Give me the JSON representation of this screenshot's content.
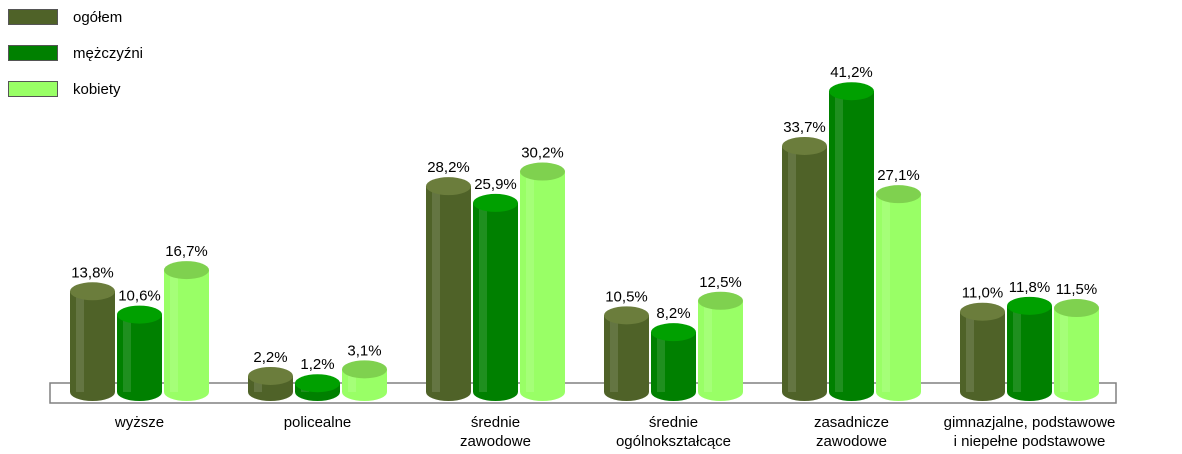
{
  "chart_data": {
    "type": "bar",
    "categories": [
      [
        "wyższe"
      ],
      [
        "policealne"
      ],
      [
        "średnie",
        "zawodowe"
      ],
      [
        "średnie",
        "ogólnokształcące"
      ],
      [
        "zasadnicze",
        "zawodowe"
      ],
      [
        "gimnazjalne, podstawowe",
        "i niepełne podstawowe"
      ]
    ],
    "series": [
      {
        "name": "ogółem",
        "values": [
          13.8,
          2.2,
          28.2,
          10.5,
          33.7,
          11.0
        ],
        "labels": [
          "13,8%",
          "2,2%",
          "28,2%",
          "10,5%",
          "33,7%",
          "11,0%"
        ],
        "color": "#4f6228",
        "top_color": "#6b7d3c"
      },
      {
        "name": "mężczyźni",
        "values": [
          10.6,
          1.2,
          25.9,
          8.2,
          41.2,
          11.8
        ],
        "labels": [
          "10,6%",
          "1,2%",
          "25,9%",
          "8,2%",
          "41,2%",
          "11,8%"
        ],
        "color": "#008000",
        "top_color": "#00a000"
      },
      {
        "name": "kobiety",
        "values": [
          16.7,
          3.1,
          30.2,
          12.5,
          27.1,
          11.5
        ],
        "labels": [
          "16,7%",
          "3,1%",
          "30,2%",
          "12,5%",
          "27,1%",
          "11,5%"
        ],
        "color": "#99ff66",
        "top_color": "#7fd14f"
      }
    ],
    "ylim": [
      0,
      45
    ],
    "legend_position": "top-left",
    "grid": false
  }
}
